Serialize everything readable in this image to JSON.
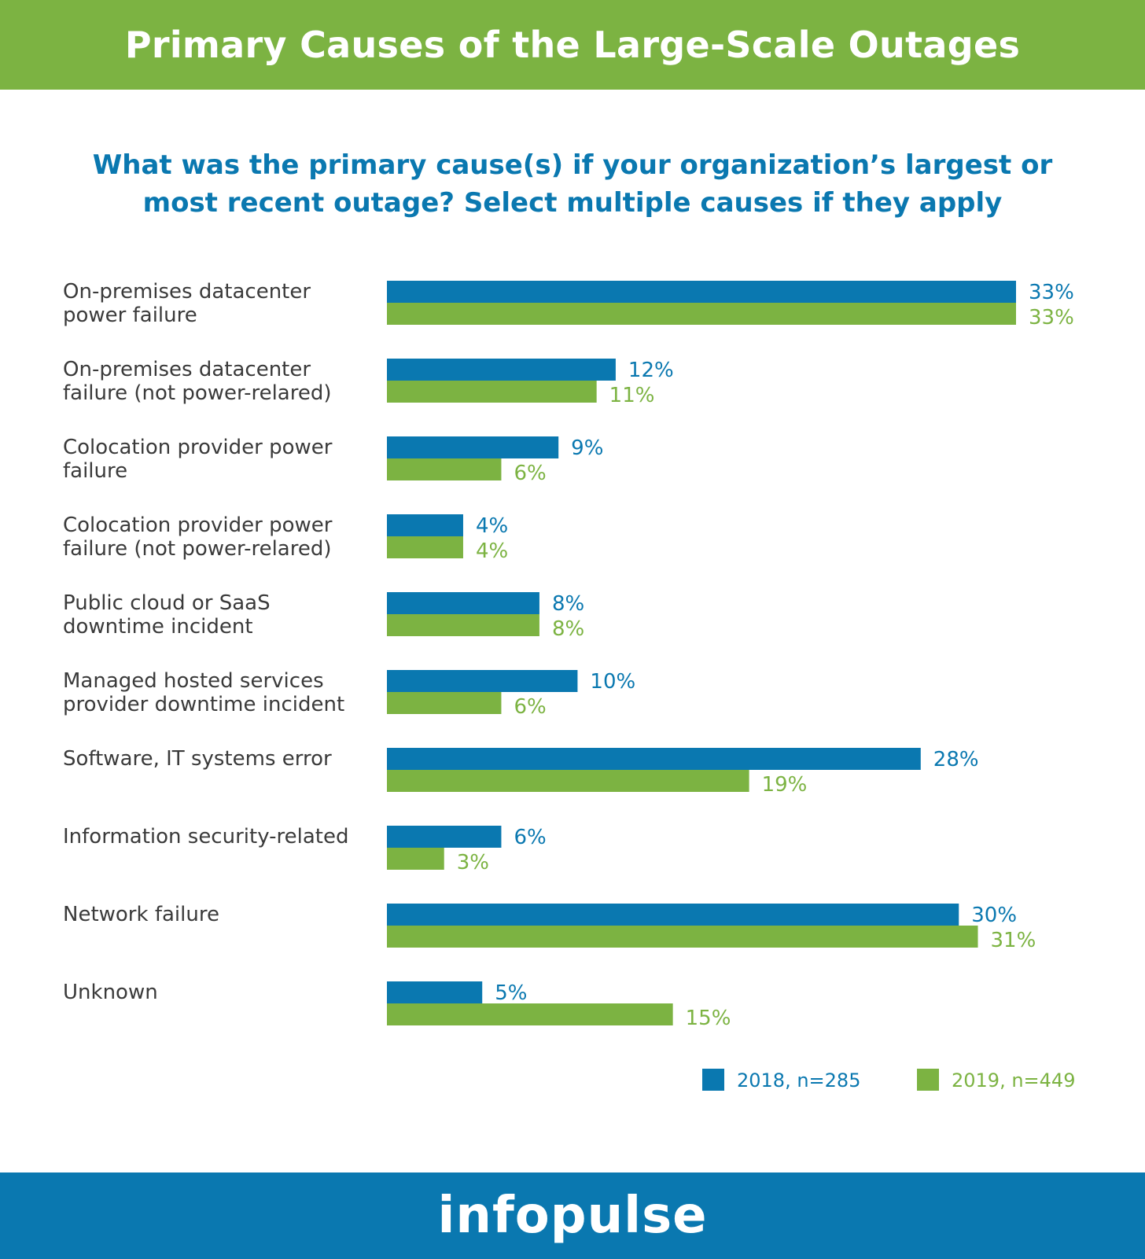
{
  "header": {
    "title": "Primary Causes of the Large-Scale Outages"
  },
  "question": "What was the primary cause(s) if your organization’s largest or most recent outage? Select multiple causes if they apply",
  "footer": {
    "logo": "infopulse"
  },
  "colors": {
    "series_2018": "#0a78b0",
    "series_2019": "#7cb342",
    "label_text": "#3a3a3a"
  },
  "chart_data": {
    "type": "bar",
    "orientation": "horizontal",
    "categories": [
      [
        "On-premises datacenter",
        "power failure"
      ],
      [
        "On-premises datacenter",
        "failure (not power-relared)"
      ],
      [
        "Colocation provider power",
        "failure"
      ],
      [
        "Colocation provider power",
        "failure (not power-relared)"
      ],
      [
        "Public cloud or SaaS",
        "downtime incident"
      ],
      [
        "Managed hosted services",
        "provider downtime incident"
      ],
      [
        "Software, IT systems error"
      ],
      [
        "Information security-related"
      ],
      [
        "Network failure"
      ],
      [
        "Unknown"
      ]
    ],
    "series": [
      {
        "name": "2018, n=285",
        "values": [
          33,
          12,
          9,
          4,
          8,
          10,
          28,
          6,
          30,
          5
        ]
      },
      {
        "name": "2019, n=449",
        "values": [
          33,
          11,
          6,
          4,
          8,
          6,
          19,
          3,
          31,
          15
        ]
      }
    ],
    "value_suffix": "%",
    "xlim": [
      0,
      33
    ],
    "grid": false,
    "legend_position": "bottom-right"
  }
}
